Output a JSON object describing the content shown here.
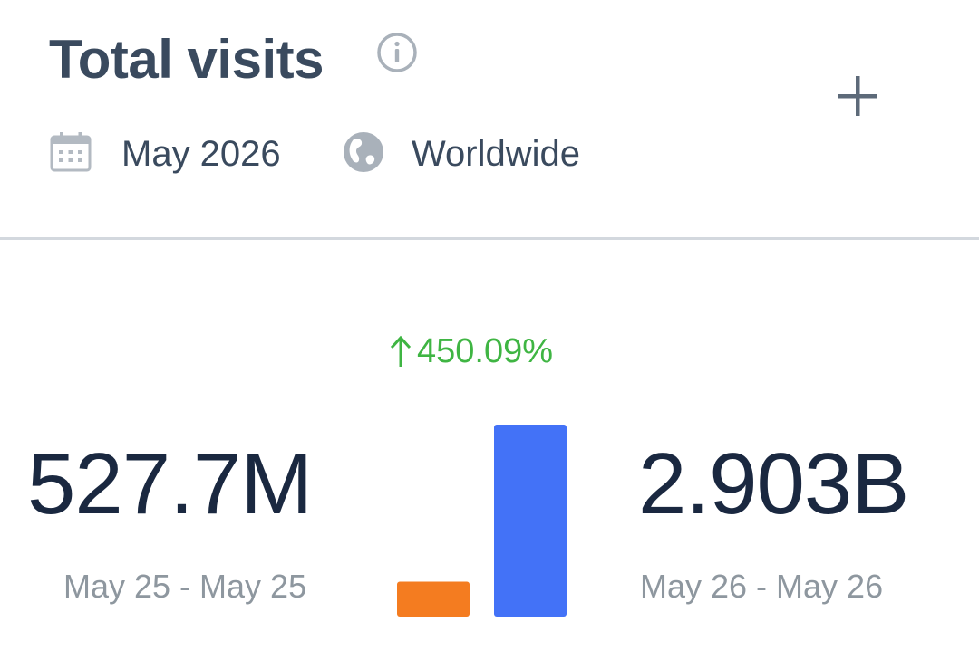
{
  "header": {
    "title": "Total visits",
    "date": "May 2026",
    "region": "Worldwide"
  },
  "icons": {
    "info": "info-icon",
    "add": "plus-icon",
    "calendar": "calendar-icon",
    "globe": "globe-icon"
  },
  "comparison": {
    "change_text": "450.09%",
    "change_direction": "up",
    "previous": {
      "value_text": "527.7M",
      "range": "May 25 - May 25"
    },
    "current": {
      "value_text": "2.903B",
      "range": "May 26 - May 26"
    }
  },
  "colors": {
    "previous": "#f47c20",
    "current": "#4372f7",
    "positive": "#3fb543"
  },
  "chart_data": {
    "type": "bar",
    "categories": [
      "May 25 - May 25",
      "May 26 - May 26"
    ],
    "values": [
      527700000,
      2903000000
    ],
    "ylim": [
      0,
      2903000000
    ]
  }
}
